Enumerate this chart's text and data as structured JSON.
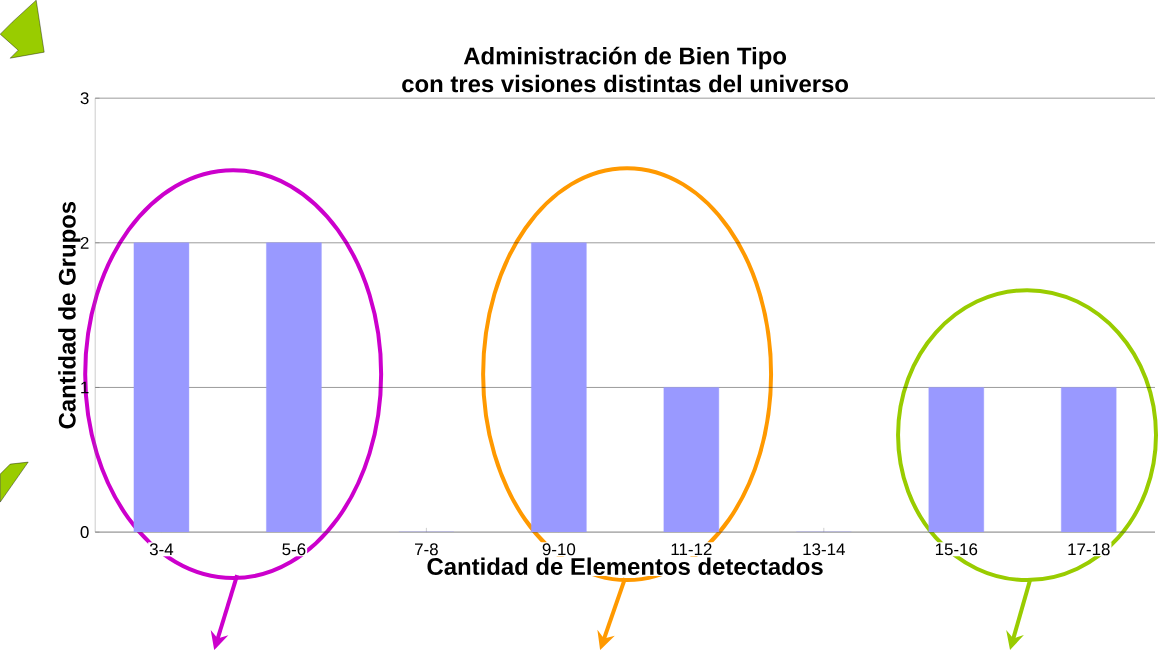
{
  "chart_data": {
    "type": "bar",
    "title": "Administración de Bien Tipo\ncon tres visiones distintas del universo",
    "xlabel": "Cantidad de Elementos detectados",
    "ylabel": "Cantidad de Grupos",
    "categories": [
      "3-4",
      "5-6",
      "7-8",
      "9-10",
      "11-12",
      "13-14",
      "15-16",
      "17-18"
    ],
    "values": [
      2,
      2,
      0,
      2,
      1,
      0,
      1,
      1
    ],
    "color": "#9999ff",
    "ylim": [
      0,
      3
    ],
    "yticks": [
      0,
      1,
      2,
      3
    ],
    "grid": "y"
  }
}
